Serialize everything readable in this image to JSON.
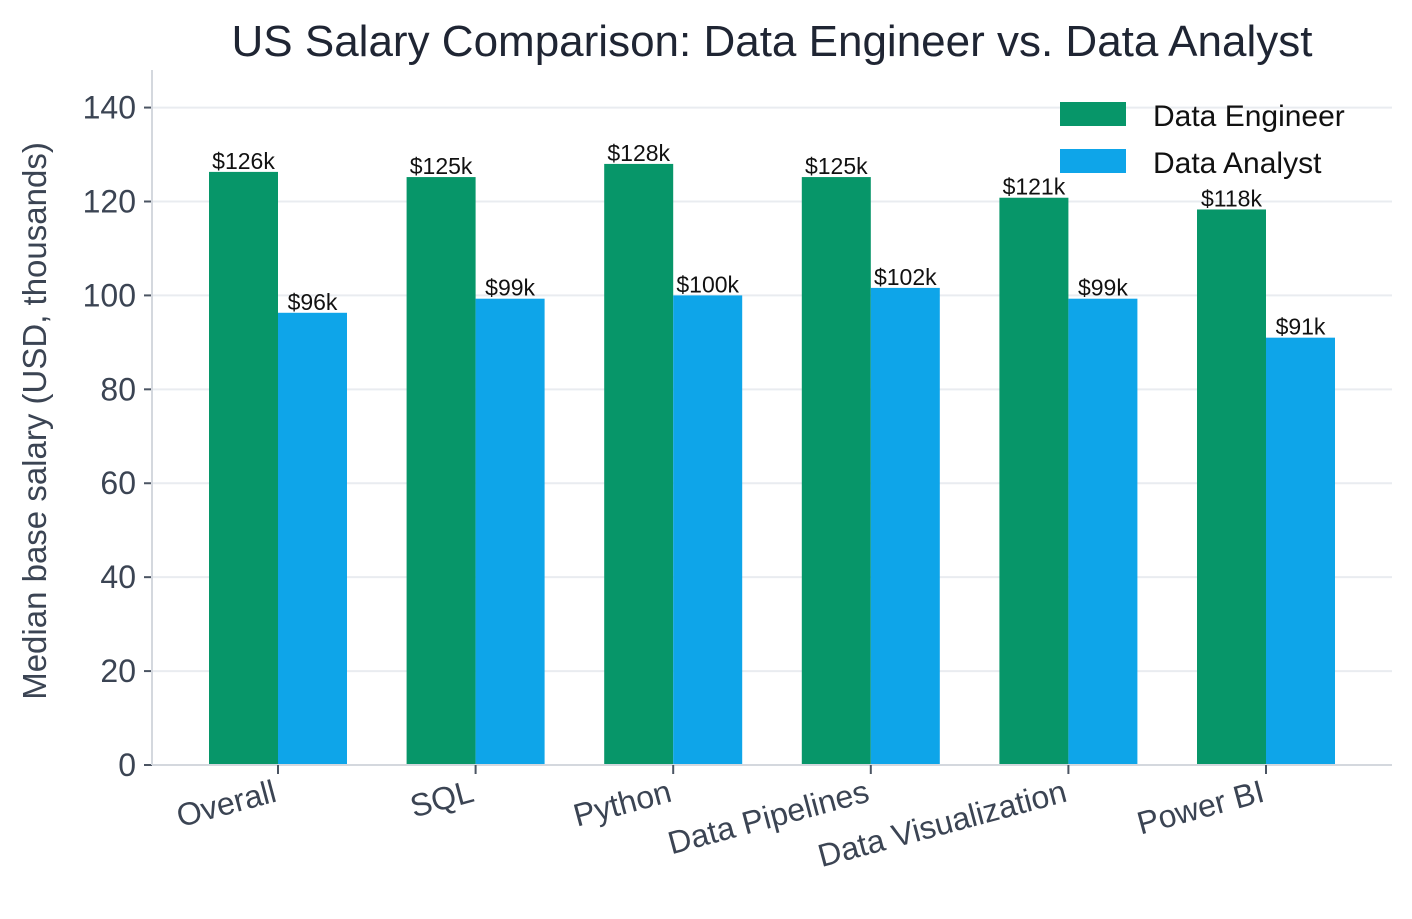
{
  "chart_data": {
    "type": "bar",
    "title": "US Salary Comparison: Data Engineer vs. Data Analyst",
    "xlabel": "",
    "ylabel": "Median base salary (USD, thousands)",
    "ylim": [
      0,
      148
    ],
    "yticks": [
      0,
      20,
      40,
      60,
      80,
      100,
      120,
      140
    ],
    "grid": "horizontal",
    "legend_position": "top-right",
    "categories": [
      "Overall",
      "SQL",
      "Python",
      "Data Pipelines",
      "Data Visualization",
      "Power BI"
    ],
    "series": [
      {
        "name": "Data Engineer",
        "color": "#079669",
        "values": [
          126.3,
          125.2,
          128.0,
          125.2,
          120.8,
          118.3
        ],
        "labels": [
          "$126k",
          "$125k",
          "$128k",
          "$125k",
          "$121k",
          "$118k"
        ]
      },
      {
        "name": "Data Analyst",
        "color": "#0ea5e9",
        "values": [
          96.3,
          99.3,
          100.0,
          101.6,
          99.3,
          91.0
        ],
        "labels": [
          "$96k",
          "$99k",
          "$100k",
          "$102k",
          "$99k",
          "$91k"
        ]
      }
    ]
  }
}
